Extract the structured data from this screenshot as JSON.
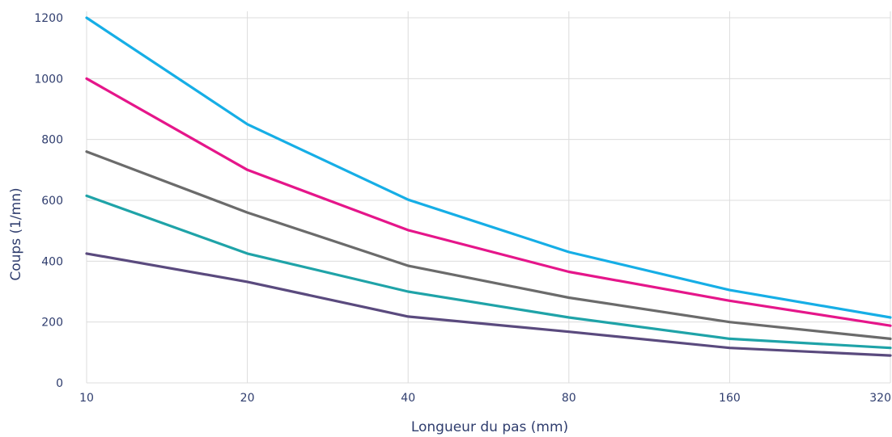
{
  "chart_data": {
    "type": "line",
    "x_scale": "log2",
    "x": [
      10,
      20,
      40,
      80,
      160,
      320
    ],
    "x_tick_labels": [
      "10",
      "20",
      "40",
      "80",
      "160",
      "320"
    ],
    "y_ticks": [
      0,
      200,
      400,
      600,
      800,
      1000,
      1200
    ],
    "y_tick_labels": [
      "0",
      "200",
      "400",
      "600",
      "800",
      "1000",
      "1200"
    ],
    "ylim": [
      0,
      1200
    ],
    "xlabel": "Longueur du pas (mm)",
    "ylabel": "Coups (1/mn)",
    "grid": true,
    "series": [
      {
        "color": "#16aee6",
        "values": [
          1200,
          850,
          602,
          430,
          305,
          215
        ]
      },
      {
        "color": "#e5168a",
        "values": [
          1000,
          700,
          502,
          365,
          270,
          188
        ]
      },
      {
        "color": "#6b6b6b",
        "values": [
          760,
          560,
          385,
          280,
          200,
          145
        ]
      },
      {
        "color": "#1fa3a8",
        "values": [
          615,
          425,
          300,
          215,
          145,
          115
        ]
      },
      {
        "color": "#5a4a7e",
        "values": [
          425,
          332,
          218,
          168,
          115,
          90
        ]
      }
    ]
  }
}
